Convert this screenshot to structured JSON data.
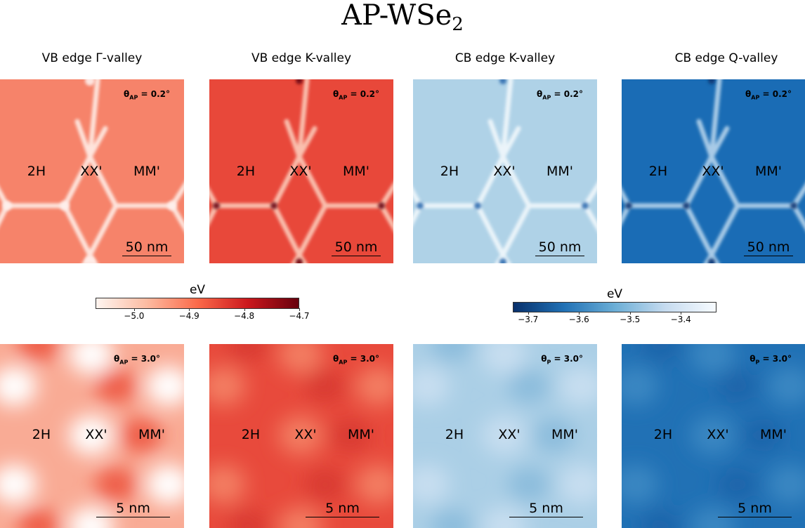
{
  "title": "AP-WSe",
  "title_sub": "2",
  "columns": [
    "VB edge Γ-valley",
    "VB edge K-valley",
    "CB edge K-valley",
    "CB edge Q-valley"
  ],
  "stack_labels": {
    "a": "2H",
    "b": "XX'",
    "c": "MM'"
  },
  "top_row": {
    "angle_prefix": "θ",
    "angle_subs": [
      "AP",
      "AP",
      "AP",
      "AP"
    ],
    "angle_value": " = 0.2°",
    "scale_label": "50 nm"
  },
  "bottom_row": {
    "angle_prefix": "θ",
    "angle_subs": [
      "AP",
      "AP",
      "P",
      "P"
    ],
    "angle_value": " = 3.0°",
    "scale_label": "5 nm"
  },
  "colorbar_red": {
    "unit": "eV",
    "range": [
      -5.07,
      -4.7
    ],
    "ticks": [
      -5.0,
      -4.9,
      -4.8,
      -4.7
    ],
    "tick_labels": [
      "−5.0",
      "−4.9",
      "−4.8",
      "−4.7"
    ],
    "colormap": "Reds",
    "colors": [
      "#fff5f0",
      "#fcbba1",
      "#fb6a4a",
      "#cb181d",
      "#67000d"
    ]
  },
  "colorbar_blue": {
    "unit": "eV",
    "range": [
      -3.73,
      -3.33
    ],
    "ticks": [
      -3.7,
      -3.6,
      -3.5,
      -3.4
    ],
    "tick_labels": [
      "−3.7",
      "−3.6",
      "−3.5",
      "−3.4"
    ],
    "colormap": "Blues_r",
    "colors": [
      "#08306b",
      "#2171b5",
      "#6baed6",
      "#c6dbef",
      "#f7fbff"
    ]
  },
  "chart_data": [
    {
      "type": "heatmap",
      "title": "VB edge Γ-valley",
      "twist_angle": "θAP = 0.2°",
      "scale": "50 nm",
      "colormap": "Reds",
      "base_color": "#f6836a",
      "labels": [
        "2H",
        "XX'",
        "MM'"
      ]
    },
    {
      "type": "heatmap",
      "title": "VB edge K-valley",
      "twist_angle": "θAP = 0.2°",
      "scale": "50 nm",
      "colormap": "Reds",
      "base_color": "#e9483b",
      "labels": [
        "2H",
        "XX'",
        "MM'"
      ]
    },
    {
      "type": "heatmap",
      "title": "CB edge K-valley",
      "twist_angle": "θAP = 0.2°",
      "scale": "50 nm",
      "colormap": "Blues",
      "base_color": "#b0d2e8",
      "labels": [
        "2H",
        "XX'",
        "MM'"
      ]
    },
    {
      "type": "heatmap",
      "title": "CB edge Q-valley",
      "twist_angle": "θAP = 0.2°",
      "scale": "50 nm",
      "colormap": "Blues",
      "base_color": "#1b6db5",
      "labels": [
        "2H",
        "XX'",
        "MM'"
      ]
    },
    {
      "type": "heatmap",
      "twist_angle": "θAP = 3.0°",
      "scale": "5 nm",
      "colormap": "Reds",
      "base_color": "#f9ab95",
      "labels": [
        "2H",
        "XX'",
        "MM'"
      ]
    },
    {
      "type": "heatmap",
      "twist_angle": "θAP = 3.0°",
      "scale": "5 nm",
      "colormap": "Reds",
      "base_color": "#e84a3c",
      "labels": [
        "2H",
        "XX'",
        "MM'"
      ]
    },
    {
      "type": "heatmap",
      "twist_angle": "θP = 3.0°",
      "scale": "5 nm",
      "colormap": "Blues",
      "base_color": "#abcfe6",
      "labels": [
        "2H",
        "XX'",
        "MM'"
      ]
    },
    {
      "type": "heatmap",
      "twist_angle": "θP = 3.0°",
      "scale": "5 nm",
      "colormap": "Blues",
      "base_color": "#2171b5",
      "labels": [
        "2H",
        "XX'",
        "MM'"
      ]
    }
  ]
}
